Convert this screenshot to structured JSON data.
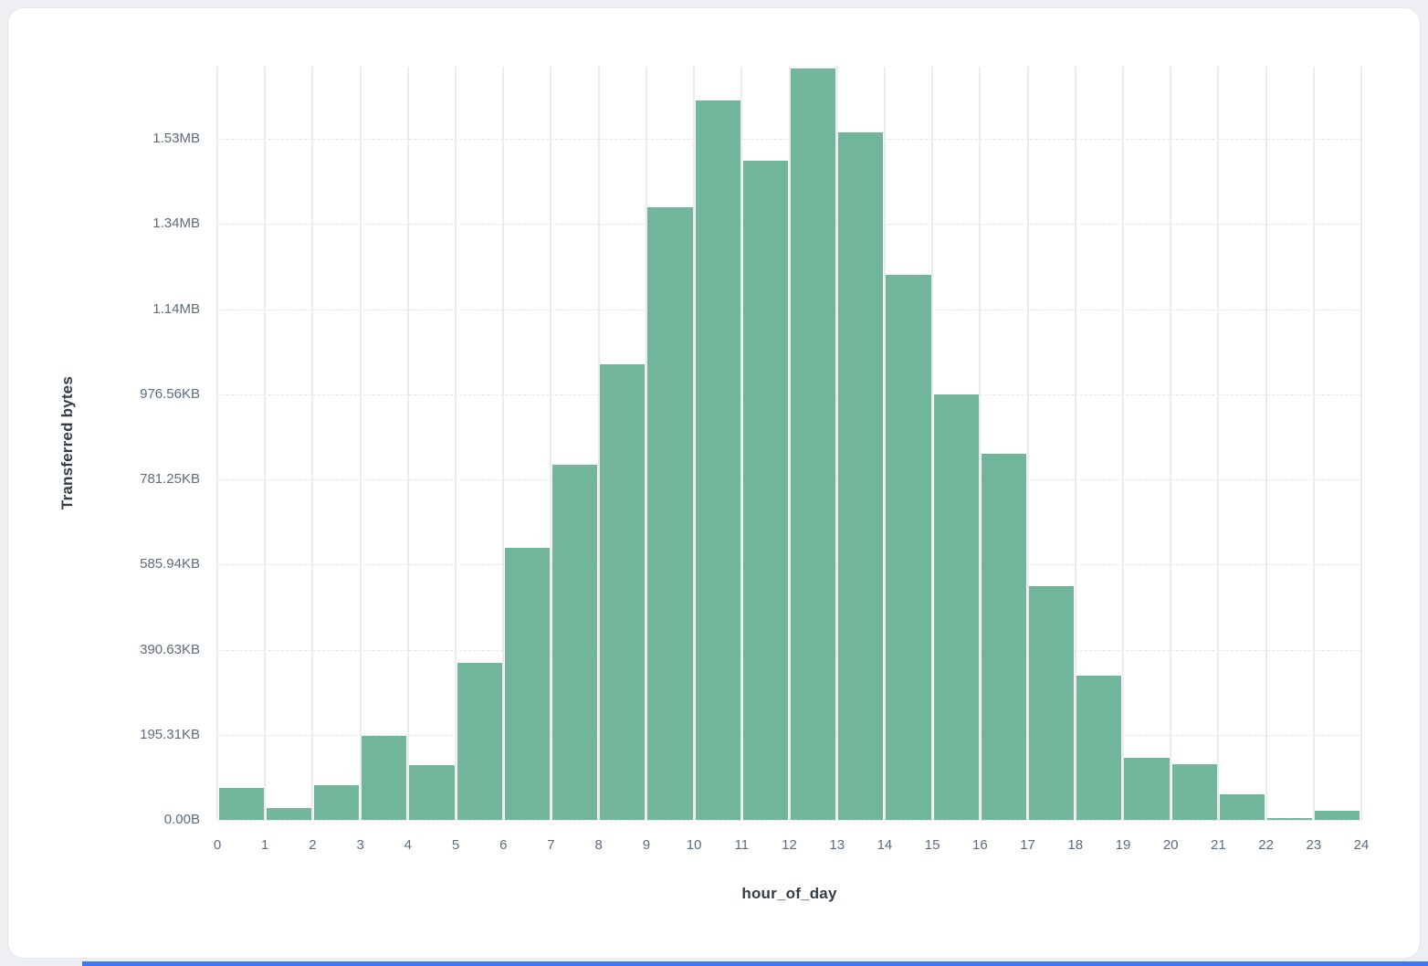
{
  "page": {
    "accent_color": "#4076f5"
  },
  "chart_data": {
    "type": "bar",
    "title": "",
    "xlabel": "hour_of_day",
    "ylabel": "Transferred bytes",
    "unit": "bytes",
    "grid": true,
    "legend_position": "none",
    "bar_color": "#71b59b",
    "categories": [
      0,
      1,
      2,
      3,
      4,
      5,
      6,
      7,
      8,
      9,
      10,
      11,
      12,
      13,
      14,
      15,
      16,
      17,
      18,
      19,
      20,
      21,
      22,
      23
    ],
    "values": [
      75000,
      28000,
      82000,
      197000,
      128000,
      370000,
      640000,
      835000,
      1070000,
      1440000,
      1690000,
      1550000,
      1765000,
      1615000,
      1280000,
      1000000,
      860000,
      550000,
      340000,
      145000,
      130000,
      60000,
      4000,
      22000
    ],
    "x_ticks": [
      "0",
      "1",
      "2",
      "3",
      "4",
      "5",
      "6",
      "7",
      "8",
      "9",
      "10",
      "11",
      "12",
      "13",
      "14",
      "15",
      "16",
      "17",
      "18",
      "19",
      "20",
      "21",
      "22",
      "23",
      "24"
    ],
    "y_ticks": [
      {
        "value": 0,
        "label": "0.00B"
      },
      {
        "value": 200000,
        "label": "195.31KB"
      },
      {
        "value": 400000,
        "label": "390.63KB"
      },
      {
        "value": 600000,
        "label": "585.94KB"
      },
      {
        "value": 800000,
        "label": "781.25KB"
      },
      {
        "value": 1000000,
        "label": "976.56KB"
      },
      {
        "value": 1200000,
        "label": "1.14MB"
      },
      {
        "value": 1400000,
        "label": "1.34MB"
      },
      {
        "value": 1600000,
        "label": "1.53MB"
      }
    ],
    "ylim": [
      0,
      1770000
    ]
  }
}
